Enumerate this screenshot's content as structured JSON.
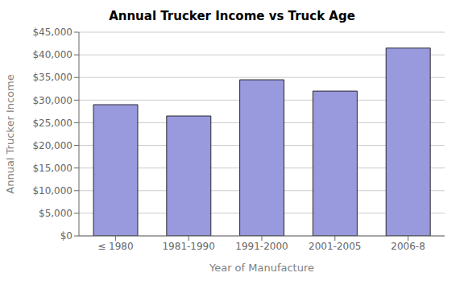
{
  "chart_data": {
    "type": "bar",
    "title": "Annual Trucker Income vs Truck Age",
    "xlabel": "Year of Manufacture",
    "ylabel": "Annual Trucker Income",
    "categories": [
      "≤ 1980",
      "1981-1990",
      "1991-2000",
      "2001-2005",
      "2006-8"
    ],
    "values": [
      29000,
      26500,
      34500,
      32000,
      41500
    ],
    "color": "#9999dd",
    "ylim": [
      0,
      45000
    ],
    "yticks": [
      {
        "value": 0,
        "label": "$0"
      },
      {
        "value": 5000,
        "label": "$5,000"
      },
      {
        "value": 10000,
        "label": "$10,000"
      },
      {
        "value": 15000,
        "label": "$15,000"
      },
      {
        "value": 20000,
        "label": "$20,000"
      },
      {
        "value": 25000,
        "label": "$25,000"
      },
      {
        "value": 30000,
        "label": "$30,000"
      },
      {
        "value": 35000,
        "label": "$35,000"
      },
      {
        "value": 40000,
        "label": "$40,000"
      },
      {
        "value": 45000,
        "label": "$45,000"
      }
    ],
    "grid": true
  }
}
